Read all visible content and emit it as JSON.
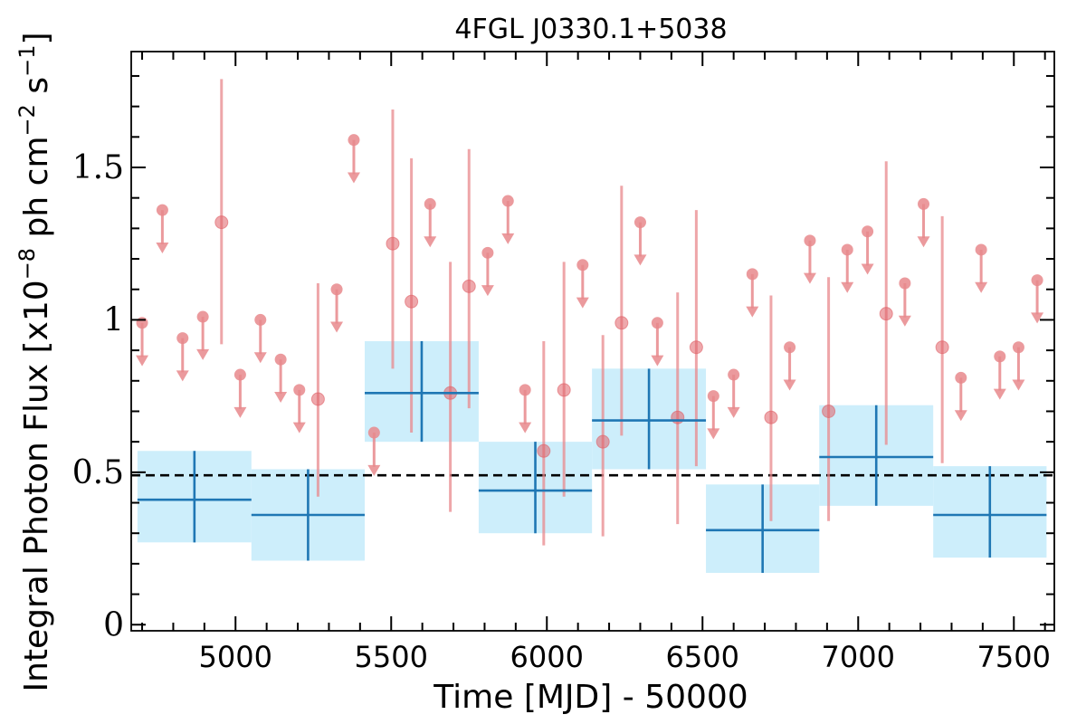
{
  "chart_data": {
    "type": "scatter",
    "title": "4FGL J0330.1+5038",
    "xlabel": "Time [MJD] - 50000",
    "ylabel_main": "Integral Photon Flux [x10",
    "ylabel_exp1": "−8",
    "ylabel_mid": " ph cm",
    "ylabel_exp2": "−2",
    "ylabel_mid2": " s",
    "ylabel_exp3": "−1",
    "ylabel_end": "]",
    "xlim": [
      4665,
      7630
    ],
    "ylim": [
      -0.02,
      1.88
    ],
    "xticks": [
      {
        "value": 5000,
        "label": "5000"
      },
      {
        "value": 5500,
        "label": "5500"
      },
      {
        "value": 6000,
        "label": "6000"
      },
      {
        "value": 6500,
        "label": "6500"
      },
      {
        "value": 7000,
        "label": "7000"
      },
      {
        "value": 7500,
        "label": "7500"
      }
    ],
    "yticks": [
      {
        "value": 0,
        "label": "0"
      },
      {
        "value": 0.5,
        "label": "0.5"
      },
      {
        "value": 1,
        "label": "1"
      },
      {
        "value": 1.5,
        "label": "1.5"
      }
    ],
    "reference_line": {
      "y": 0.49,
      "style": "dashed",
      "color": "#000000"
    },
    "colors": {
      "upper_limit": "#e8888c",
      "detection": "#e06068",
      "bin": "#1f77b4",
      "bin_band": "#cdeefb"
    },
    "upper_limits": [
      {
        "x": 4700,
        "y": 0.99
      },
      {
        "x": 4765,
        "y": 1.36
      },
      {
        "x": 4830,
        "y": 0.94
      },
      {
        "x": 4895,
        "y": 1.01
      },
      {
        "x": 5015,
        "y": 0.82
      },
      {
        "x": 5080,
        "y": 1.0
      },
      {
        "x": 5145,
        "y": 0.87
      },
      {
        "x": 5205,
        "y": 0.77
      },
      {
        "x": 5325,
        "y": 1.1
      },
      {
        "x": 5380,
        "y": 1.59
      },
      {
        "x": 5445,
        "y": 0.63
      },
      {
        "x": 5625,
        "y": 1.38
      },
      {
        "x": 5810,
        "y": 1.22
      },
      {
        "x": 5875,
        "y": 1.39
      },
      {
        "x": 5930,
        "y": 0.77
      },
      {
        "x": 6115,
        "y": 1.18
      },
      {
        "x": 6300,
        "y": 1.32
      },
      {
        "x": 6355,
        "y": 0.99
      },
      {
        "x": 6535,
        "y": 0.75
      },
      {
        "x": 6600,
        "y": 0.82
      },
      {
        "x": 6660,
        "y": 1.15
      },
      {
        "x": 6780,
        "y": 0.91
      },
      {
        "x": 6845,
        "y": 1.26
      },
      {
        "x": 6965,
        "y": 1.23
      },
      {
        "x": 7030,
        "y": 1.29
      },
      {
        "x": 7150,
        "y": 1.12
      },
      {
        "x": 7210,
        "y": 1.38
      },
      {
        "x": 7330,
        "y": 0.81
      },
      {
        "x": 7395,
        "y": 1.23
      },
      {
        "x": 7455,
        "y": 0.88
      },
      {
        "x": 7515,
        "y": 0.91
      },
      {
        "x": 7575,
        "y": 1.13
      }
    ],
    "detections": [
      {
        "x": 4955,
        "y": 1.32,
        "lo": 0.92,
        "hi": 1.79
      },
      {
        "x": 5265,
        "y": 0.74,
        "lo": 0.42,
        "hi": 1.12
      },
      {
        "x": 5505,
        "y": 1.25,
        "lo": 0.84,
        "hi": 1.69
      },
      {
        "x": 5565,
        "y": 1.06,
        "lo": 0.63,
        "hi": 1.53
      },
      {
        "x": 5690,
        "y": 0.76,
        "lo": 0.37,
        "hi": 1.19
      },
      {
        "x": 5750,
        "y": 1.11,
        "lo": 0.71,
        "hi": 1.56
      },
      {
        "x": 5990,
        "y": 0.57,
        "lo": 0.26,
        "hi": 0.93
      },
      {
        "x": 6055,
        "y": 0.77,
        "lo": 0.42,
        "hi": 1.19
      },
      {
        "x": 6180,
        "y": 0.6,
        "lo": 0.29,
        "hi": 0.95
      },
      {
        "x": 6240,
        "y": 0.99,
        "lo": 0.62,
        "hi": 1.44
      },
      {
        "x": 6420,
        "y": 0.68,
        "lo": 0.33,
        "hi": 1.09
      },
      {
        "x": 6480,
        "y": 0.91,
        "lo": 0.52,
        "hi": 1.36
      },
      {
        "x": 6720,
        "y": 0.68,
        "lo": 0.34,
        "hi": 1.08
      },
      {
        "x": 6905,
        "y": 0.7,
        "lo": 0.34,
        "hi": 1.14
      },
      {
        "x": 7090,
        "y": 1.02,
        "lo": 0.59,
        "hi": 1.52
      },
      {
        "x": 7270,
        "y": 0.91,
        "lo": 0.53,
        "hi": 1.34
      }
    ],
    "bins": [
      {
        "x": 4868,
        "xerr": 183,
        "y": 0.41,
        "lo": 0.27,
        "hi": 0.57
      },
      {
        "x": 5233,
        "xerr": 182,
        "y": 0.36,
        "lo": 0.21,
        "hi": 0.51
      },
      {
        "x": 5598,
        "xerr": 183,
        "y": 0.76,
        "lo": 0.6,
        "hi": 0.93
      },
      {
        "x": 5963,
        "xerr": 182,
        "y": 0.44,
        "lo": 0.3,
        "hi": 0.6
      },
      {
        "x": 6328,
        "xerr": 183,
        "y": 0.67,
        "lo": 0.51,
        "hi": 0.84
      },
      {
        "x": 6693,
        "xerr": 182,
        "y": 0.31,
        "lo": 0.17,
        "hi": 0.46
      },
      {
        "x": 7058,
        "xerr": 183,
        "y": 0.55,
        "lo": 0.39,
        "hi": 0.72
      },
      {
        "x": 7423,
        "xerr": 182,
        "y": 0.36,
        "lo": 0.22,
        "hi": 0.52
      }
    ]
  }
}
